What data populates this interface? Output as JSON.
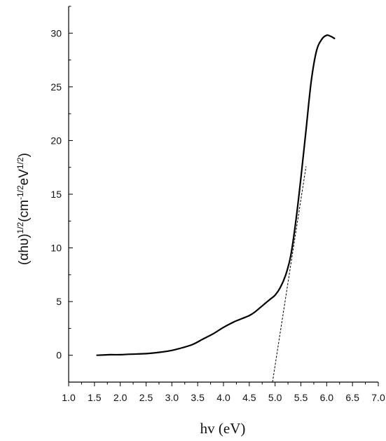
{
  "chart_data": {
    "type": "line",
    "title": "",
    "xlabel": "hv (eV)",
    "ylabel": "(αhυ)¹ᐟ²(cm⁻¹ᐟ²eV¹ᐟ²)",
    "xlim": [
      1.0,
      7.0
    ],
    "ylim": [
      -2.5,
      32.5
    ],
    "x_ticks": [
      "1.0",
      "1.5",
      "2.0",
      "2.5",
      "3.0",
      "3.5",
      "4.0",
      "4.5",
      "5.0",
      "5.5",
      "6.0",
      "6.5",
      "7.0"
    ],
    "y_ticks": [
      "0",
      "5",
      "10",
      "15",
      "20",
      "25",
      "30"
    ],
    "grid": false,
    "series": [
      {
        "name": "",
        "style": "solid",
        "color": "#000000",
        "x": [
          1.55,
          1.8,
          2.0,
          2.2,
          2.5,
          2.8,
          3.0,
          3.2,
          3.4,
          3.6,
          3.8,
          4.0,
          4.2,
          4.35,
          4.5,
          4.6,
          4.75,
          4.9,
          5.0,
          5.1,
          5.2,
          5.3,
          5.4,
          5.5,
          5.6,
          5.7,
          5.8,
          5.9,
          6.0,
          6.08,
          6.15
        ],
        "y": [
          0.0,
          0.05,
          0.05,
          0.1,
          0.15,
          0.3,
          0.45,
          0.7,
          1.0,
          1.5,
          2.0,
          2.6,
          3.1,
          3.4,
          3.7,
          4.0,
          4.6,
          5.2,
          5.6,
          6.3,
          7.4,
          9.2,
          12.4,
          16.5,
          21.0,
          25.5,
          28.3,
          29.4,
          29.8,
          29.7,
          29.5
        ]
      },
      {
        "name": "",
        "style": "dashed",
        "color": "#000000",
        "x": [
          4.95,
          5.6
        ],
        "y": [
          -2.5,
          17.6
        ]
      }
    ]
  }
}
